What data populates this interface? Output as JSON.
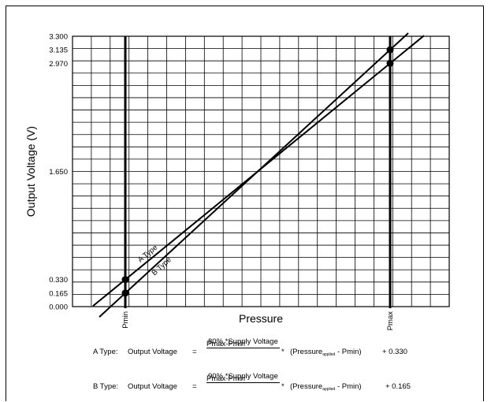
{
  "chart_data": {
    "type": "line",
    "xlabel": "Pressure",
    "ylabel": "Output Voltage (V)",
    "x_ticks": [
      "Pmin",
      "Pmax"
    ],
    "y_ticks": [
      "0.000",
      "0.165",
      "0.330",
      "1.650",
      "2.970",
      "3.135",
      "3.300"
    ],
    "ylim": [
      0,
      3.3
    ],
    "grid": true,
    "series": [
      {
        "name": "A Type",
        "points": [
          [
            "Pmin",
            0.33
          ],
          [
            "Pmax",
            2.97
          ]
        ]
      },
      {
        "name": "B Type",
        "points": [
          [
            "Pmin",
            0.165
          ],
          [
            "Pmax",
            3.135
          ]
        ]
      }
    ]
  },
  "formulas": [
    {
      "type_label": "A Type:",
      "output_label": "Output Voltage",
      "equals": "=",
      "numerator": "80% *Supply Voltage",
      "denominator": "Pmax-Pmin",
      "multiply": "*",
      "pressure_open": "(Pressure",
      "pressure_sub": "applied",
      "pressure_close": "- Pmin)",
      "offset": "+ 0.330"
    },
    {
      "type_label": "B Type:",
      "output_label": "Output Voltage",
      "equals": "=",
      "numerator": "90% *Supply Voltage",
      "denominator": "Pmax-Pmin",
      "multiply": "*",
      "pressure_open": "(Pressure",
      "pressure_sub": "applied",
      "pressure_close": "- Pmin)",
      "offset": "+ 0.165"
    }
  ]
}
